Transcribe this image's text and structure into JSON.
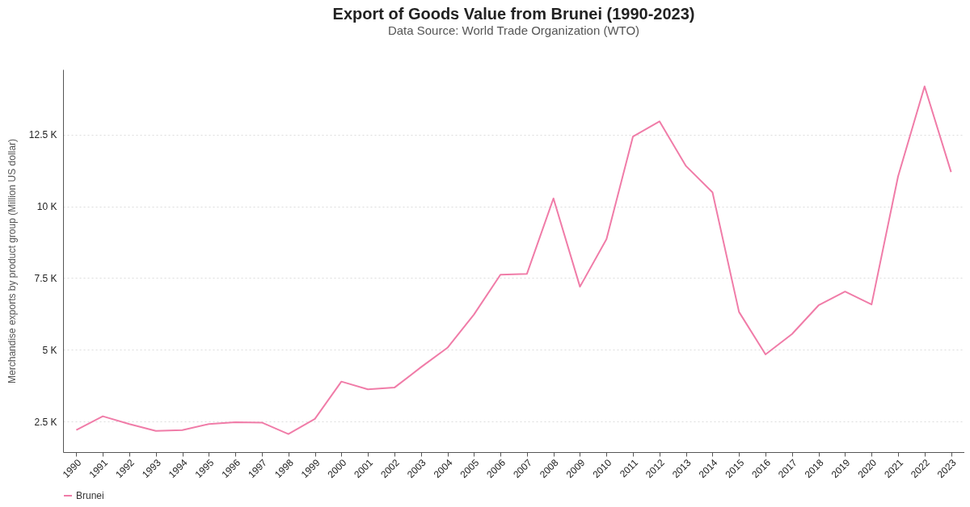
{
  "chart_data": {
    "type": "line",
    "title": "Export of Goods Value from Brunei (1990-2023)",
    "subtitle": "Data Source: World Trade Organization (WTO)",
    "ylabel": "Merchandise exports by product group (Million US dollar)",
    "categories": [
      "1990",
      "1991",
      "1992",
      "1993",
      "1994",
      "1995",
      "1996",
      "1997",
      "1998",
      "1999",
      "2000",
      "2001",
      "2002",
      "2003",
      "2004",
      "2005",
      "2006",
      "2007",
      "2008",
      "2009",
      "2010",
      "2011",
      "2012",
      "2013",
      "2014",
      "2015",
      "2016",
      "2017",
      "2018",
      "2019",
      "2020",
      "2021",
      "2022",
      "2023"
    ],
    "series": [
      {
        "name": "Brunei",
        "color": "#f07ca8",
        "values": [
          2200,
          2680,
          2410,
          2170,
          2200,
          2410,
          2470,
          2460,
          2060,
          2590,
          3890,
          3620,
          3680,
          4390,
          5070,
          6230,
          7620,
          7650,
          10280,
          7200,
          8860,
          12440,
          12970,
          11410,
          10490,
          6320,
          4840,
          5550,
          6550,
          7030,
          6580,
          11050,
          14190,
          11200
        ]
      }
    ],
    "ylim": [
      1430,
      14780
    ],
    "yticks": [
      {
        "value": 2500,
        "label": "2.5 K"
      },
      {
        "value": 5000,
        "label": "5 K"
      },
      {
        "value": 7500,
        "label": "7.5 K"
      },
      {
        "value": 10000,
        "label": "10 K"
      },
      {
        "value": 12500,
        "label": "12.5 K"
      }
    ],
    "grid": "y",
    "legend": "bottom",
    "marker": "none",
    "line_style": "solid"
  }
}
